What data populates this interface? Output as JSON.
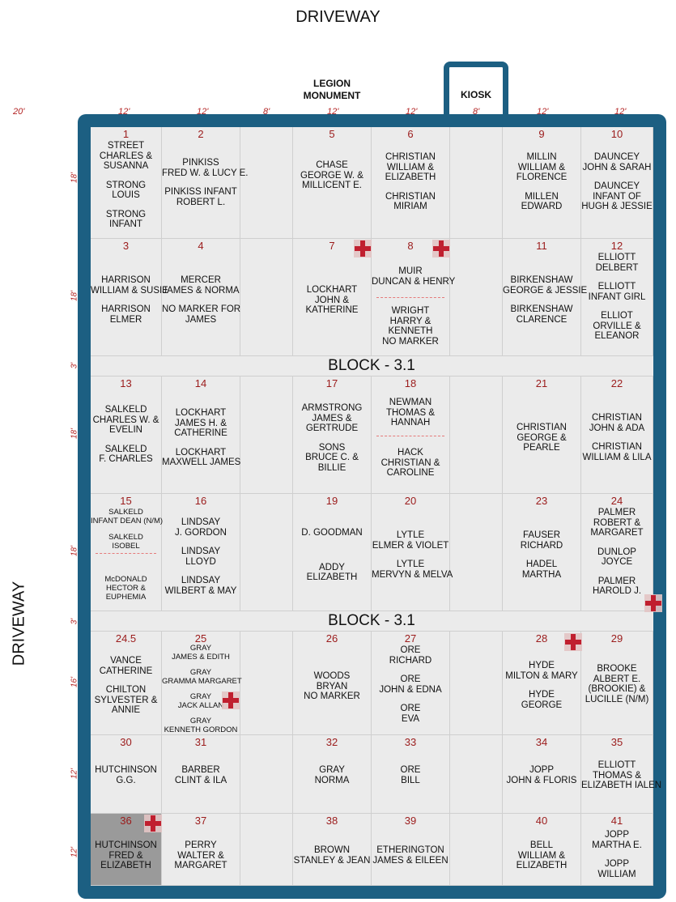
{
  "roads": {
    "top": "DRIVEWAY",
    "left": "DRIVEWAY"
  },
  "monument": {
    "line1": "LEGION",
    "line2": "MONUMENT"
  },
  "kiosk": "KIOSK",
  "widths": [
    "20'",
    "12'",
    "12'",
    "8'",
    "12'",
    "12'",
    "8'",
    "12'",
    "12'"
  ],
  "heights": [
    "18'",
    "18'",
    "3'",
    "18'",
    "18'",
    "3'",
    "16'",
    "12'",
    "12'"
  ],
  "blocks": [
    "BLOCK - 3.1",
    "BLOCK - 3.1"
  ],
  "plots": {
    "p1": {
      "num": "1",
      "lines": [
        "STREET",
        "CHARLES &",
        "SUSANNA",
        "",
        "STRONG",
        "LOUIS",
        "",
        "STRONG",
        "INFANT"
      ]
    },
    "p2": {
      "num": "2",
      "lines": [
        "PINKISS",
        "FRED W. & LUCY E.",
        "",
        "PINKISS INFANT",
        "ROBERT L."
      ]
    },
    "p5": {
      "num": "5",
      "lines": [
        "CHASE",
        "GEORGE W. &",
        "MILLICENT E."
      ]
    },
    "p6": {
      "num": "6",
      "lines": [
        "CHRISTIAN",
        "WILLIAM &",
        "ELIZABETH",
        "",
        "CHRISTIAN",
        "MIRIAM"
      ]
    },
    "p9": {
      "num": "9",
      "lines": [
        "MILLIN",
        "WILLIAM &",
        "FLORENCE",
        "",
        "MILLEN",
        "EDWARD"
      ]
    },
    "p10": {
      "num": "10",
      "lines": [
        "DAUNCEY",
        "JOHN & SARAH",
        "",
        "DAUNCEY",
        "INFANT OF",
        "HUGH & JESSIE"
      ]
    },
    "p3": {
      "num": "3",
      "lines": [
        "HARRISON",
        "WILLIAM & SUSIE",
        "",
        "HARRISON",
        "ELMER"
      ]
    },
    "p4": {
      "num": "4",
      "lines": [
        "MERCER",
        "JAMES & NORMA",
        "",
        "NO MARKER FOR",
        "JAMES"
      ]
    },
    "p7": {
      "num": "7",
      "lines": [
        "LOCKHART",
        "JOHN &",
        "KATHERINE"
      ]
    },
    "p8": {
      "num": "8",
      "top": [
        "MUIR",
        "DUNCAN & HENRY"
      ],
      "bottom": [
        "WRIGHT",
        "HARRY &",
        "KENNETH",
        "NO MARKER"
      ]
    },
    "p11": {
      "num": "11",
      "lines": [
        "BIRKENSHAW",
        "GEORGE & JESSIE",
        "",
        "BIRKENSHAW",
        "CLARENCE"
      ]
    },
    "p12": {
      "num": "12",
      "lines": [
        "ELLIOTT",
        "DELBERT",
        "",
        "ELLIOTT",
        "INFANT GIRL",
        "",
        "ELLIOT",
        "ORVILLE &",
        "ELEANOR"
      ]
    },
    "p13": {
      "num": "13",
      "lines": [
        "SALKELD",
        "CHARLES W. &",
        "EVELIN",
        "",
        "SALKELD",
        "F. CHARLES"
      ]
    },
    "p14": {
      "num": "14",
      "lines": [
        "LOCKHART",
        "JAMES H. &",
        "CATHERINE",
        "",
        "LOCKHART",
        "MAXWELL JAMES"
      ]
    },
    "p17": {
      "num": "17",
      "lines": [
        "ARMSTRONG",
        "JAMES &",
        "GERTRUDE",
        "",
        "SONS",
        "BRUCE C. &",
        "BILLIE"
      ]
    },
    "p18": {
      "num": "18",
      "top": [
        "NEWMAN",
        "THOMAS &",
        "HANNAH"
      ],
      "bottom": [
        "HACK",
        "CHRISTIAN &",
        "CAROLINE"
      ]
    },
    "p21": {
      "num": "21",
      "lines": [
        "CHRISTIAN",
        "GEORGE &",
        "PEARLE"
      ]
    },
    "p22": {
      "num": "22",
      "lines": [
        "CHRISTIAN",
        "JOHN & ADA",
        "",
        "CHRISTIAN",
        "WILLIAM & LILA"
      ]
    },
    "p15": {
      "num": "15",
      "top": [
        "SALKELD",
        "INFANT DEAN (N/M)",
        "",
        "SALKELD",
        "ISOBEL"
      ],
      "bottom": [
        "McDONALD",
        "HECTOR &",
        "EUPHEMIA"
      ]
    },
    "p16": {
      "num": "16",
      "lines": [
        "LINDSAY",
        "J. GORDON",
        "",
        "LINDSAY",
        "LLOYD",
        "",
        "LINDSAY",
        "WILBERT & MAY"
      ]
    },
    "p19": {
      "num": "19",
      "lines": [
        "D. GOODMAN",
        "",
        "",
        "",
        "ADDY",
        "ELIZABETH"
      ]
    },
    "p20": {
      "num": "20",
      "lines": [
        "LYTLE",
        "ELMER & VIOLET",
        "",
        "LYTLE",
        "MERVYN & MELVA"
      ]
    },
    "p23": {
      "num": "23",
      "lines": [
        "FAUSER",
        "RICHARD",
        "",
        "HADEL",
        "MARTHA"
      ]
    },
    "p24": {
      "num": "24",
      "lines": [
        "PALMER",
        "ROBERT &",
        "MARGARET",
        "",
        "DUNLOP",
        "JOYCE",
        "",
        "PALMER",
        "HAROLD J."
      ]
    },
    "p24_5": {
      "num": "24.5",
      "lines": [
        "VANCE",
        "CATHERINE",
        "",
        "CHILTON",
        "SYLVESTER &",
        "ANNIE"
      ]
    },
    "p25": {
      "num": "25",
      "lines": [
        "GRAY",
        "JAMES & EDITH",
        "",
        "GRAY",
        "GRAMMA MARGARET",
        "",
        "GRAY",
        "JACK ALLAN",
        "",
        "GRAY",
        "KENNETH GORDON"
      ]
    },
    "p26": {
      "num": "26",
      "lines": [
        "WOODS",
        "BRYAN",
        "NO MARKER"
      ]
    },
    "p27": {
      "num": "27",
      "lines": [
        "ORE",
        "RICHARD",
        "",
        "ORE",
        "JOHN & EDNA",
        "",
        "ORE",
        "EVA"
      ]
    },
    "p28": {
      "num": "28",
      "lines": [
        "HYDE",
        "MILTON & MARY",
        "",
        "HYDE",
        "GEORGE"
      ]
    },
    "p29": {
      "num": "29",
      "lines": [
        "BROOKE",
        "ALBERT E.",
        "(BROOKIE) &",
        "LUCILLE (N/M)"
      ]
    },
    "p30": {
      "num": "30",
      "lines": [
        "HUTCHINSON",
        "G.G."
      ]
    },
    "p31": {
      "num": "31",
      "lines": [
        "BARBER",
        "CLINT & ILA"
      ]
    },
    "p32": {
      "num": "32",
      "lines": [
        "GRAY",
        "NORMA"
      ]
    },
    "p33": {
      "num": "33",
      "lines": [
        "ORE",
        "BILL"
      ]
    },
    "p34": {
      "num": "34",
      "lines": [
        "JOPP",
        "JOHN & FLORIS"
      ]
    },
    "p35": {
      "num": "35",
      "lines": [
        "ELLIOTT",
        "THOMAS &",
        "ELIZABETH IALEN"
      ]
    },
    "p36": {
      "num": "36",
      "lines": [
        "HUTCHINSON",
        "FRED &",
        "ELIZABETH"
      ]
    },
    "p37": {
      "num": "37",
      "lines": [
        "PERRY",
        "WALTER &",
        "MARGARET"
      ]
    },
    "p38": {
      "num": "38",
      "lines": [
        "BROWN",
        "STANLEY & JEAN"
      ]
    },
    "p39": {
      "num": "39",
      "lines": [
        "ETHERINGTON",
        "JAMES & EILEEN"
      ]
    },
    "p40": {
      "num": "40",
      "lines": [
        "BELL",
        "WILLIAM &",
        "ELIZABETH"
      ]
    },
    "p41": {
      "num": "41",
      "lines": [
        "JOPP",
        "MARTHA E.",
        "",
        "JOPP",
        "WILLIAM"
      ]
    }
  },
  "colors": {
    "border": "#1c5f82",
    "plot_number": "#9b1b1b",
    "dimension": "#b22222",
    "marker": "#c01f2f",
    "occupied_shade": "#9a9a9a"
  },
  "icons": {
    "marker": "red-cross-marker-icon"
  }
}
